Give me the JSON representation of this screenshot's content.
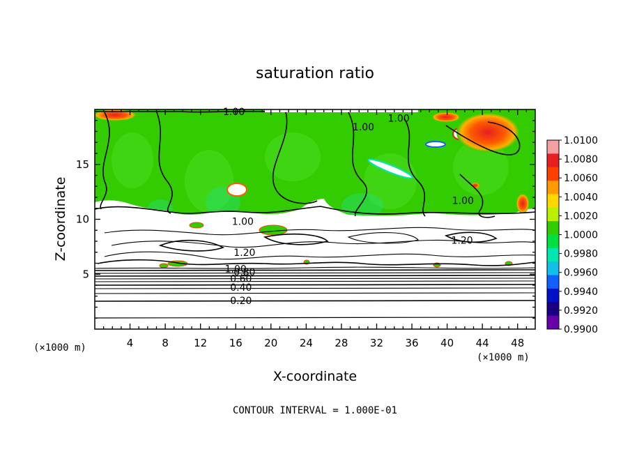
{
  "chart_data": {
    "type": "heatmap",
    "title": "saturation ratio",
    "xlabel": "X-coordinate",
    "ylabel": "Z-coordinate",
    "x_unit": "(×1000 m)",
    "y_unit": "(×1000 m)",
    "xlim": [
      0,
      50
    ],
    "ylim": [
      0,
      20
    ],
    "x_ticks": [
      "4",
      "8",
      "12",
      "16",
      "20",
      "24",
      "28",
      "32",
      "36",
      "40",
      "44",
      "48"
    ],
    "y_ticks": [
      "5",
      "10",
      "15"
    ],
    "colorbar": {
      "labels": [
        "1.0100",
        "1.0080",
        "1.0060",
        "1.0040",
        "1.0020",
        "1.0000",
        "0.9980",
        "0.9960",
        "0.9940",
        "0.9920",
        "0.9900"
      ],
      "colors": [
        "#f3a0a0",
        "#e62020",
        "#ff4000",
        "#ff9a00",
        "#ffd800",
        "#b8f000",
        "#33cc00",
        "#00e040",
        "#00e8b0",
        "#10c0e8",
        "#1060ff",
        "#0010c8",
        "#1a0080",
        "#6a00a8"
      ]
    },
    "contour_labels": [
      {
        "text": "1.00",
        "x": 15.8,
        "z": 19.8
      },
      {
        "text": "1.00",
        "x": 30.5,
        "z": 18.4
      },
      {
        "text": "1.00",
        "x": 34.5,
        "z": 19.2
      },
      {
        "text": "1.00",
        "x": 41.8,
        "z": 11.7
      },
      {
        "text": "1.00",
        "x": 16.8,
        "z": 9.8
      },
      {
        "text": "1.20",
        "x": 17.0,
        "z": 7.0
      },
      {
        "text": "1.20",
        "x": 41.7,
        "z": 8.1
      },
      {
        "text": "1.00",
        "x": 16.0,
        "z": 5.5
      },
      {
        "text": "0.80",
        "x": 17.0,
        "z": 5.2
      },
      {
        "text": "0.60",
        "x": 16.6,
        "z": 4.6
      },
      {
        "text": "0.40",
        "x": 16.6,
        "z": 3.8
      },
      {
        "text": "0.20",
        "x": 16.6,
        "z": 2.6
      }
    ],
    "footer": "CONTOUR INTERVAL = 1.000E-01"
  }
}
